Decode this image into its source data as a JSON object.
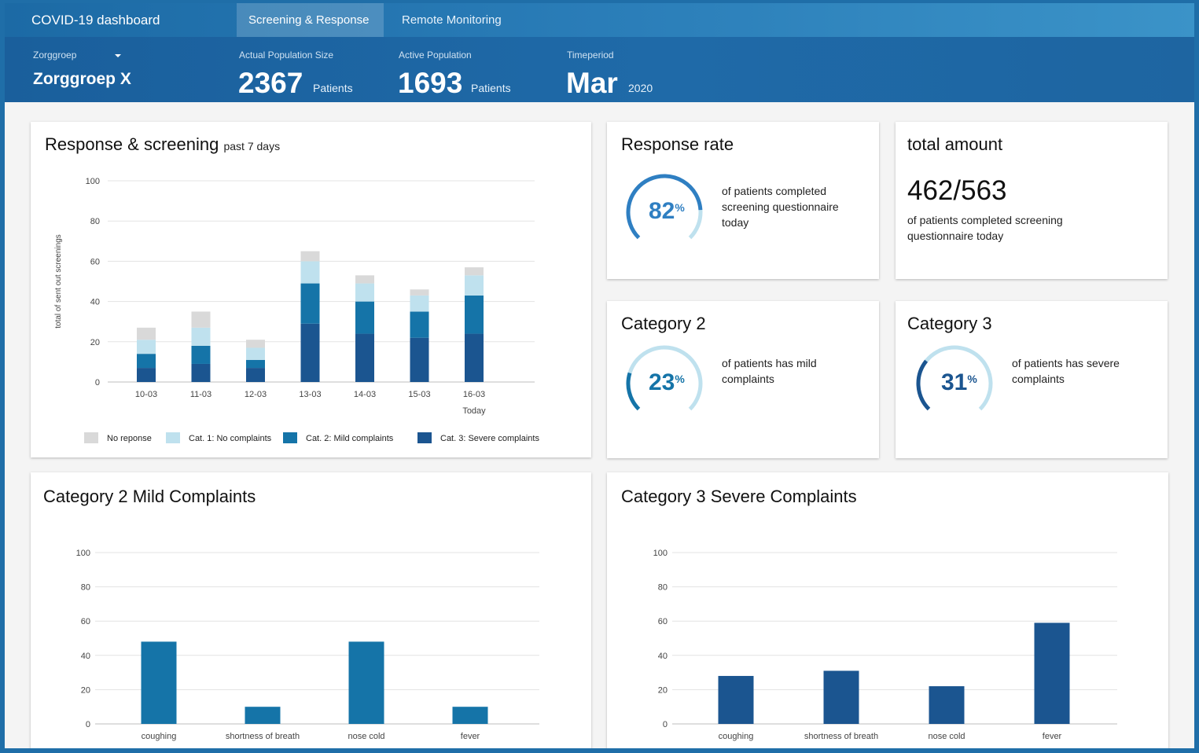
{
  "app": {
    "title": "COVID-19 dashboard"
  },
  "tabs": [
    {
      "label": "Screening & Response",
      "active": true
    },
    {
      "label": "Remote Monitoring",
      "active": false
    }
  ],
  "header": {
    "zorggroep_label": "Zorggroep",
    "zorggroep_value": "Zorggroep X",
    "population_label": "Actual Population Size",
    "population_value": "2367",
    "population_unit": "Patients",
    "active_label": "Active Population",
    "active_value": "1693",
    "active_unit": "Patients",
    "period_label": "Timeperiod",
    "period_month": "Mar",
    "period_year": "2020"
  },
  "response_screening": {
    "title": "Response & screening",
    "subtitle": "past 7 days"
  },
  "response_rate": {
    "title": "Response rate",
    "value": "82",
    "percent_sign": "%",
    "fraction": 0.82,
    "description": "of patients completed screening questionnaire today"
  },
  "total_amount": {
    "title": "total amount",
    "value": "462/563",
    "description": "of patients completed screening questionnaire today"
  },
  "category2": {
    "title": "Category 2",
    "value": "23",
    "percent_sign": "%",
    "fraction": 0.23,
    "description": "of patients has mild complaints"
  },
  "category3": {
    "title": "Category 3",
    "value": "31",
    "percent_sign": "%",
    "fraction": 0.31,
    "description": "of patients has severe complaints"
  },
  "mild_card": {
    "title": "Category 2 Mild Complaints"
  },
  "severe_card": {
    "title": "Category 3 Severe Complaints"
  },
  "colors": {
    "no_response": "#d9d9d9",
    "cat1": "#bfe1ee",
    "cat2": "#1574a8",
    "cat3": "#1b5590",
    "gauge_light": "#bfe1ee",
    "gauge_rate": "#2f7fc2",
    "gauge_cat2": "#1574a8",
    "gauge_cat3": "#1b5590"
  },
  "chart_data": [
    {
      "type": "bar",
      "stacked": true,
      "categories": [
        "10-03",
        "11-03",
        "12-03",
        "13-03",
        "14-03",
        "15-03",
        "16-03"
      ],
      "category_sublabels": [
        "",
        "",
        "",
        "",
        "",
        "",
        "Today"
      ],
      "ylabel": "total of sent out screenings",
      "ylim": [
        0,
        100
      ],
      "yticks": [
        0,
        20,
        40,
        60,
        80,
        100
      ],
      "legend_position": "bottom",
      "series": [
        {
          "name": "Cat. 3: Severe complaints",
          "color": "#1b5590",
          "values": [
            7,
            9,
            7,
            29,
            24,
            22,
            24
          ]
        },
        {
          "name": "Cat. 2: Mild complaints",
          "color": "#1574a8",
          "values": [
            7,
            9,
            4,
            20,
            16,
            13,
            19
          ]
        },
        {
          "name": "Cat. 1: No complaints",
          "color": "#bfe1ee",
          "values": [
            7,
            9,
            6,
            11,
            9,
            8,
            10
          ]
        },
        {
          "name": "No reponse",
          "color": "#d9d9d9",
          "values": [
            6,
            8,
            4,
            5,
            4,
            3,
            4
          ]
        }
      ],
      "legend_order": [
        "No reponse",
        "Cat. 1: No complaints",
        "Cat. 2: Mild complaints",
        "Cat. 3: Severe complaints"
      ]
    },
    {
      "type": "bar",
      "categories": [
        "coughing",
        "shortness of breath",
        "nose cold",
        "fever"
      ],
      "values": [
        48,
        10,
        48,
        10
      ],
      "ylim": [
        0,
        100
      ],
      "yticks": [
        0,
        20,
        40,
        60,
        80,
        100
      ],
      "color": "#1574a8"
    },
    {
      "type": "bar",
      "categories": [
        "coughing",
        "shortness of breath",
        "nose cold",
        "fever"
      ],
      "values": [
        28,
        31,
        22,
        59
      ],
      "ylim": [
        0,
        100
      ],
      "yticks": [
        0,
        20,
        40,
        60,
        80,
        100
      ],
      "color": "#1b5590"
    }
  ]
}
